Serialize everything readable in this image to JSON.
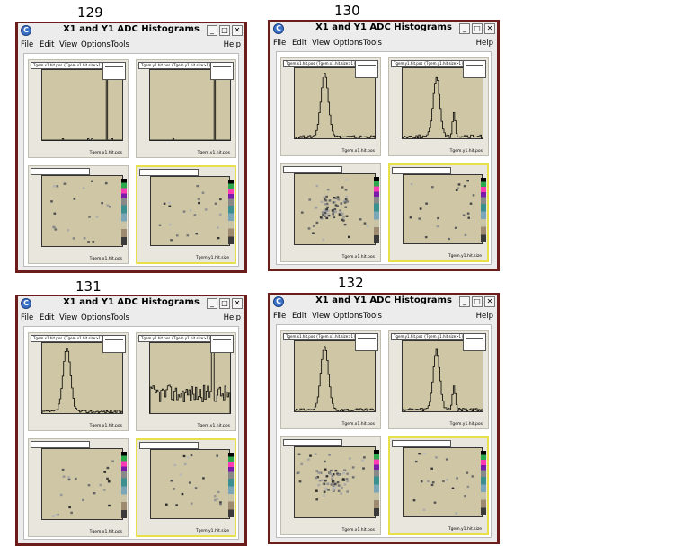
{
  "runs": [
    {
      "number": "129",
      "window_title": "X1 and Y1 ADC Histograms",
      "menu": {
        "file": "File",
        "edit": "Edit",
        "view": "View",
        "options": "Options",
        "tools": "Tools",
        "help": "Help"
      },
      "pads": [
        {
          "title": "Tgem.x1.hit.pos {Tgem.x1.hit.size>1}",
          "xlabel": "Tgem.x1.hit.pos"
        },
        {
          "title": "Tgem.y1.hit.pos {Tgem.y1.hit.size>1}",
          "xlabel": "Tgem.y1.hit.pos"
        },
        {
          "title": "",
          "xlabel": "Tgem.x1.hit.pos"
        },
        {
          "title": "",
          "xlabel": "Tgem.y1.hit.size"
        }
      ]
    },
    {
      "number": "130",
      "window_title": "X1 and Y1 ADC Histograms",
      "menu": {
        "file": "File",
        "edit": "Edit",
        "view": "View",
        "options": "Options",
        "tools": "Tools",
        "help": "Help"
      },
      "pads": [
        {
          "title": "Tgem.x1.hit.pos {Tgem.x1.hit.size>1}",
          "xlabel": "Tgem.x1.hit.pos"
        },
        {
          "title": "Tgem.y1.hit.pos {Tgem.y1.hit.size>1}",
          "xlabel": "Tgem.y1.hit.pos"
        },
        {
          "title": "",
          "xlabel": "Tgem.x1.hit.pos"
        },
        {
          "title": "",
          "xlabel": "Tgem.y1.hit.size"
        }
      ]
    },
    {
      "number": "131",
      "window_title": "X1 and Y1 ADC Histograms",
      "menu": {
        "file": "File",
        "edit": "Edit",
        "view": "View",
        "options": "Options",
        "tools": "Tools",
        "help": "Help"
      },
      "pads": [
        {
          "title": "Tgem.x1.hit.pos {Tgem.x1.hit.size>1}",
          "xlabel": "Tgem.x1.hit.pos"
        },
        {
          "title": "Tgem.y1.hit.pos {Tgem.y1.hit.size>1}",
          "xlabel": "Tgem.y1.hit.pos"
        },
        {
          "title": "",
          "xlabel": "Tgem.x1.hit.pos"
        },
        {
          "title": "",
          "xlabel": "Tgem.y1.hit.size"
        }
      ]
    },
    {
      "number": "132",
      "window_title": "X1 and Y1 ADC Histograms",
      "menu": {
        "file": "File",
        "edit": "Edit",
        "view": "View",
        "options": "Options",
        "tools": "Tools",
        "help": "Help"
      },
      "pads": [
        {
          "title": "Tgem.x1.hit.pos {Tgem.x1.hit.size>1}",
          "xlabel": "Tgem.x1.hit.pos"
        },
        {
          "title": "Tgem.y1.hit.pos {Tgem.y1.hit.size>1}",
          "xlabel": "Tgem.y1.hit.pos"
        },
        {
          "title": "",
          "xlabel": "Tgem.x1.hit.pos"
        },
        {
          "title": "",
          "xlabel": "Tgem.y1.hit.size"
        }
      ]
    }
  ],
  "colors": {
    "window_frame": "#6d1c1c",
    "pad_frame": "#cec6a4",
    "selected_pad": "#e8e04a",
    "title_bg": "#ececec"
  }
}
